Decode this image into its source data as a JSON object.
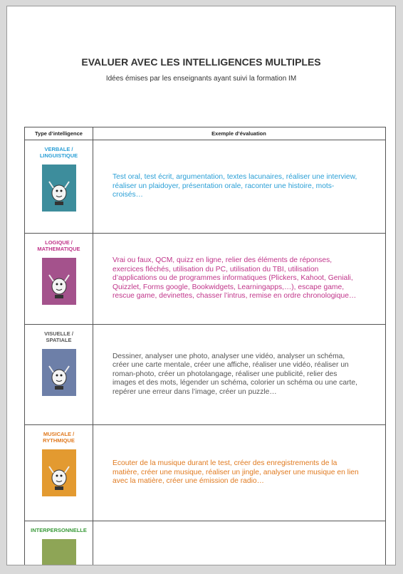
{
  "header": {
    "title": "EVALUER AVEC LES INTELLIGENCES MULTIPLES",
    "subtitle": "Idées émises par les enseignants ayant suivi la formation IM"
  },
  "table": {
    "columns": [
      "Type d’intelligence",
      "Exemple d’évaluation"
    ],
    "rows": [
      {
        "type": [
          "VERBALE /",
          "LINGUISTIQUE"
        ],
        "example": [
          "Test oral, test écrit, argumentation, textes lacunaires, réaliser une interview,",
          "réaliser un plaidoyer, présentation orale, raconter une histoire, mots-",
          "croisés…"
        ]
      },
      {
        "type": [
          "LOGIQUE /",
          "MATHEMATIQUE"
        ],
        "example": [
          "Vrai ou faux, QCM, quizz en ligne, relier des éléments de réponses,",
          "exercices fléchés, utilisation du PC, utilisation du TBI, utilisation",
          "d’applications ou de programmes informatiques (Plickers, Kahoot, Geniali,",
          "Quizzlet, Forms google, Bookwidgets, Learningapps,…), escape game,",
          "rescue game, devinettes, chasser l’intrus, remise en ordre chronologique…"
        ]
      },
      {
        "type": [
          "VISUELLE /",
          "SPATIALE"
        ],
        "example": [
          "Dessiner, analyser une photo, analyser une vidéo, analyser un schéma,",
          "créer une carte mentale, créer une affiche, réaliser une vidéo, réaliser un",
          "roman-photo, créer un photolangage, réaliser une publicité, relier des",
          "images et des mots, légender un schéma, colorier un schéma ou une carte,",
          "repérer une erreur dans l’image, créer un puzzle…"
        ]
      },
      {
        "type": [
          "MUSICALE /",
          "RYTHMIQUE"
        ],
        "example": [
          "Ecouter de la musique durant le test, créer des enregistrements de la",
          "matière, créer une musique, réaliser un jingle, analyser une musique en lien",
          "avec la matière, créer une émission de radio…"
        ]
      },
      {
        "type": [
          "INTERPERSONNELLE"
        ],
        "example": []
      }
    ]
  }
}
